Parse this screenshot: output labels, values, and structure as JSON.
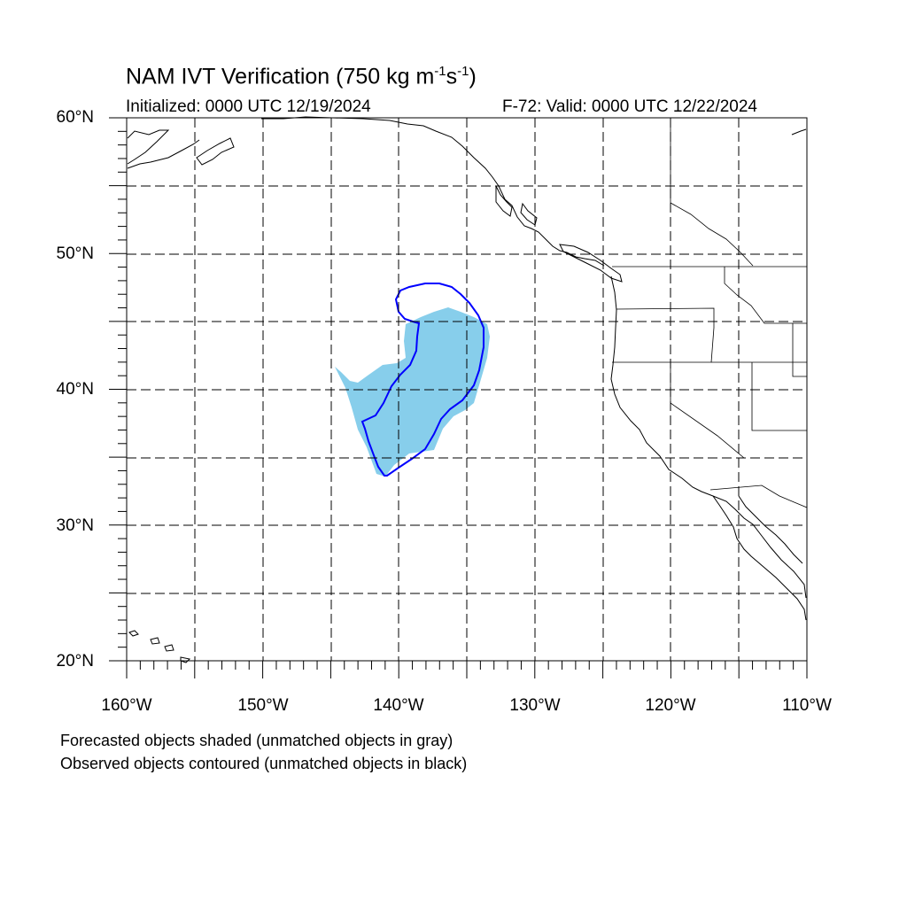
{
  "title": {
    "prefix": "NAM IVT Verification (750 kg m",
    "sup1": "-1",
    "mid": "s",
    "sup2": "-1",
    "suffix": ")"
  },
  "initialized": "Initialized: 0000 UTC 12/19/2024",
  "valid": "F-72: Valid: 0000 UTC 12/22/2024",
  "lat_labels": [
    "60°N",
    "50°N",
    "40°N",
    "30°N",
    "20°N"
  ],
  "lon_labels": [
    "160°W",
    "150°W",
    "140°W",
    "130°W",
    "120°W",
    "110°W"
  ],
  "notes": [
    "Forecasted objects shaded (unmatched objects in gray)",
    "Observed objects contoured (unmatched objects in black)"
  ],
  "colors": {
    "forecast_fill": "#87ceeb",
    "observed_contour": "#0000ff",
    "coast": "#000000",
    "grid": "#000000"
  }
}
